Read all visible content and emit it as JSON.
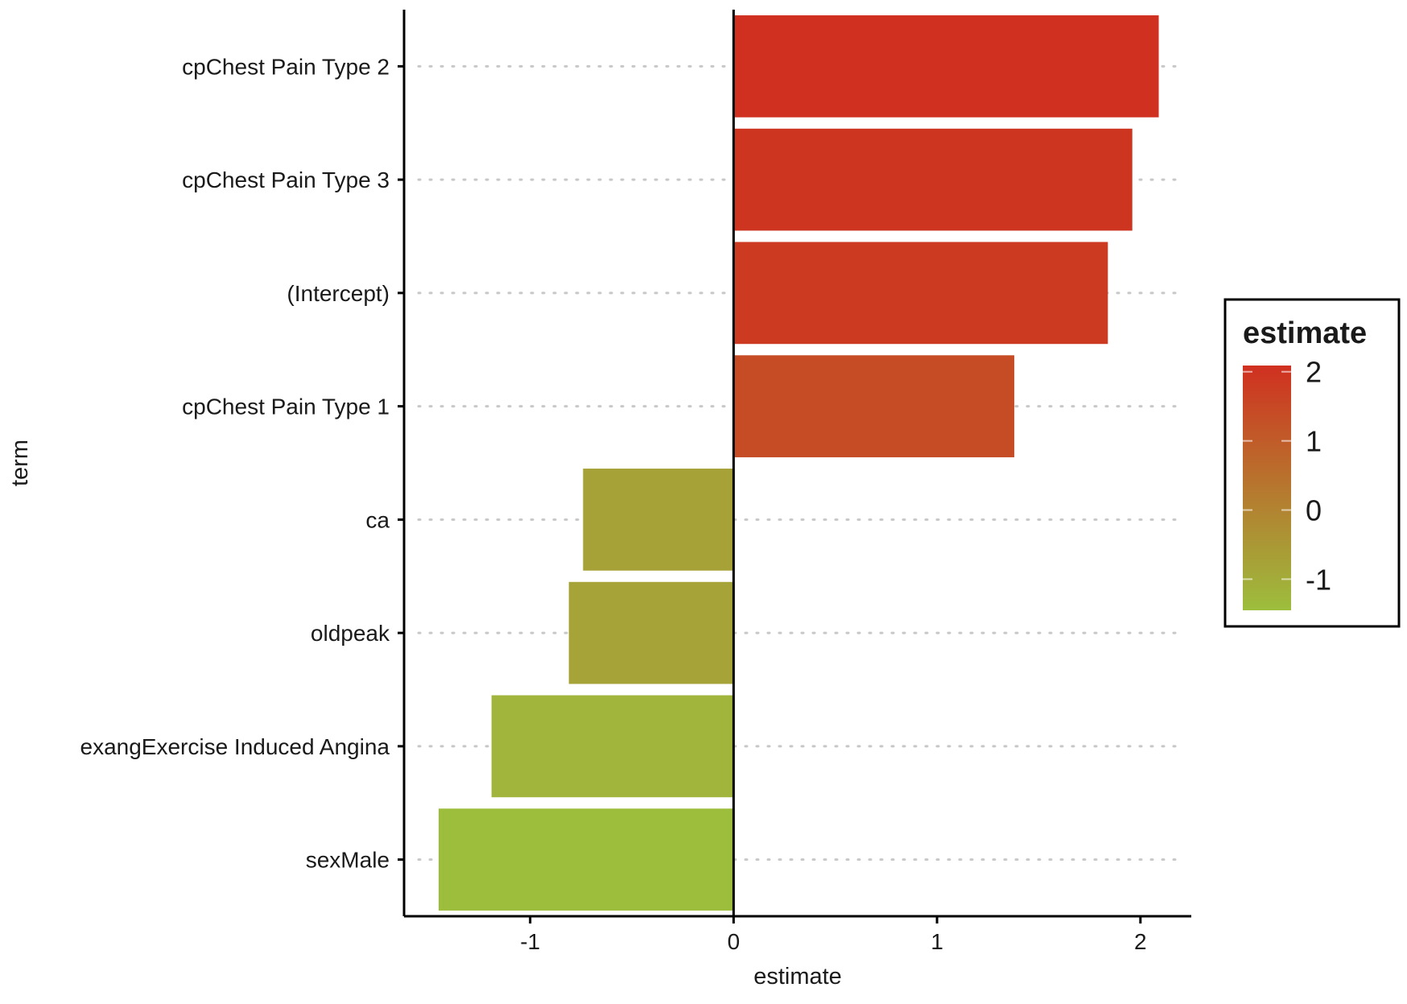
{
  "chart_data": {
    "type": "bar",
    "orientation": "horizontal",
    "xlabel": "estimate",
    "ylabel": "term",
    "xlim": [
      -1.62,
      2.25
    ],
    "x_ticks": [
      "-1",
      "0",
      "1",
      "2"
    ],
    "x_tick_values": [
      -1,
      0,
      1,
      2
    ],
    "grid": "dotted horizontal lines at each term",
    "categories": [
      "cpChest Pain Type 2",
      "cpChest Pain Type 3",
      "(Intercept)",
      "cpChest Pain Type 1",
      "ca",
      "oldpeak",
      "exangExercise Induced Angina",
      "sexMale"
    ],
    "values": [
      2.09,
      1.96,
      1.84,
      1.38,
      -0.74,
      -0.81,
      -1.19,
      -1.45
    ],
    "legend": {
      "title": "estimate",
      "placement": "right",
      "ticks": [
        "2",
        "1",
        "0",
        "-1"
      ],
      "tick_values": [
        2,
        1,
        0,
        -1
      ],
      "range": [
        -1.45,
        2.09
      ],
      "color_low": "#9dbe3d",
      "color_high": "#d03020"
    },
    "colors": {
      "low": "#9dbe3d",
      "high": "#d03020",
      "axis": "#000000",
      "grid": "#c8c8c8"
    }
  }
}
